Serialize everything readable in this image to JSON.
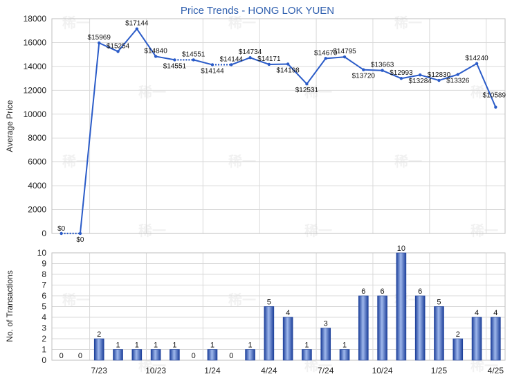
{
  "chart_data": [
    {
      "type": "line",
      "title": "Price Trends - HONG LOK YUEN",
      "ylabel": "Average Price",
      "ylim": [
        0,
        18000
      ],
      "yticks": [
        0,
        2000,
        4000,
        6000,
        8000,
        10000,
        12000,
        14000,
        16000,
        18000
      ],
      "xticks": [
        "7/23",
        "10/23",
        "1/24",
        "4/24",
        "7/24",
        "10/24",
        "1/25",
        "4/25"
      ],
      "grid": true,
      "line_color": "#2a5bc8",
      "points": [
        {
          "value": 0,
          "label": "$0"
        },
        {
          "value": 0,
          "label": "$0"
        },
        {
          "value": 15969,
          "label": "$15969"
        },
        {
          "value": 15254,
          "label": "$15254"
        },
        {
          "value": 17144,
          "label": "$17144"
        },
        {
          "value": 14840,
          "label": "$14840"
        },
        {
          "value": 14551,
          "label": "$14551"
        },
        {
          "value": 14551,
          "label": "$14551"
        },
        {
          "value": 14144,
          "label": "$14144"
        },
        {
          "value": 14144,
          "label": "$14144"
        },
        {
          "value": 14734,
          "label": "$14734"
        },
        {
          "value": 14171,
          "label": "$14171"
        },
        {
          "value": 14198,
          "label": "$14198"
        },
        {
          "value": 12531,
          "label": "$12531"
        },
        {
          "value": 14670,
          "label": "$14670"
        },
        {
          "value": 14795,
          "label": "$14795"
        },
        {
          "value": 13720,
          "label": "$13720"
        },
        {
          "value": 13663,
          "label": "$13663"
        },
        {
          "value": 12993,
          "label": "$12993"
        },
        {
          "value": 13284,
          "label": "$13284"
        },
        {
          "value": 12830,
          "label": "$12830"
        },
        {
          "value": 13326,
          "label": "$13326"
        },
        {
          "value": 14240,
          "label": "$14240"
        },
        {
          "value": 10589,
          "label": "$10589"
        }
      ],
      "dotted_segments": [
        0,
        6,
        8
      ]
    },
    {
      "type": "bar",
      "ylabel": "No. of Transactions",
      "ylim": [
        0,
        10
      ],
      "yticks": [
        0,
        1,
        2,
        3,
        4,
        5,
        6,
        7,
        8,
        9,
        10
      ],
      "xticks": [
        "7/23",
        "10/23",
        "1/24",
        "4/24",
        "7/24",
        "10/24",
        "1/25",
        "4/25"
      ],
      "grid": true,
      "bar_color": "#2a5bc8",
      "values": [
        0,
        0,
        2,
        1,
        1,
        1,
        1,
        0,
        1,
        0,
        1,
        5,
        4,
        1,
        3,
        1,
        6,
        6,
        10,
        6,
        5,
        2,
        4,
        4
      ]
    }
  ],
  "watermark": "稀一"
}
